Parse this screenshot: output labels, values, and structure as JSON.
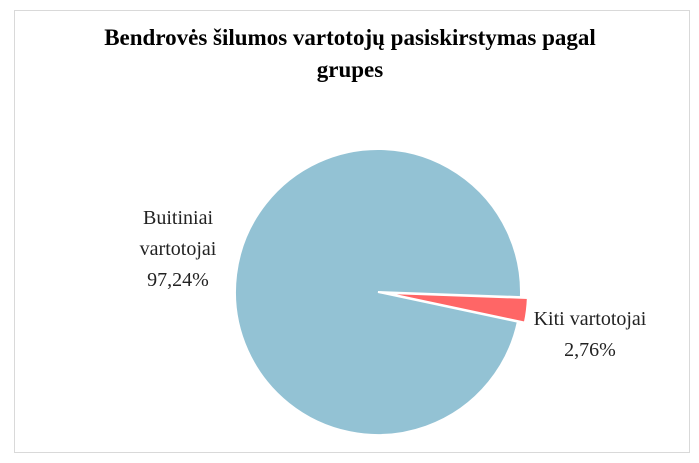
{
  "chart_data": {
    "type": "pie",
    "title": "Bendrovės šilumos vartotojų pasiskirstymas pagal grupes",
    "categories": [
      "Buitiniai vartotojai",
      "Kiti vartotojai"
    ],
    "values": [
      97.24,
      2.76
    ],
    "value_labels": [
      "97,24%",
      "2,76%"
    ],
    "colors": [
      "#93c2d4",
      "#ff6666"
    ]
  }
}
